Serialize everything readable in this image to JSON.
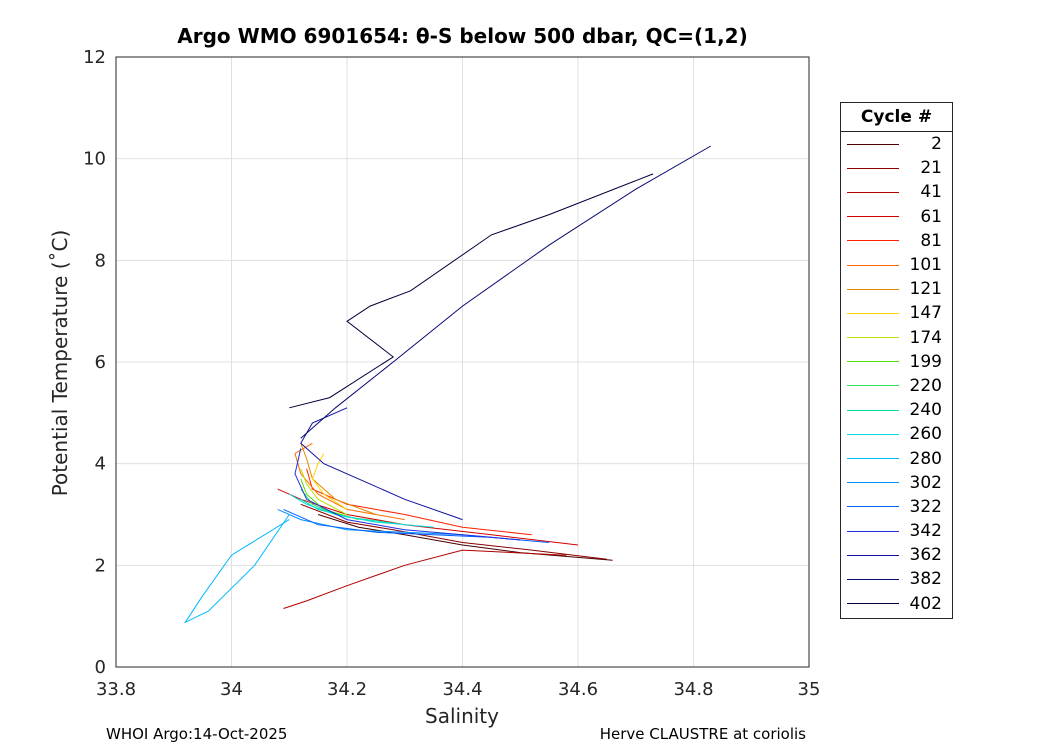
{
  "chart_data": {
    "type": "line",
    "title": "Argo WMO 6901654: θ-S below 500 dbar,  QC=(1,2)",
    "xlabel": "Salinity",
    "ylabel": "Potential Temperature (˚C)",
    "xlim": [
      33.8,
      35
    ],
    "ylim": [
      0,
      12
    ],
    "xticks": [
      "33.8",
      "34",
      "34.2",
      "34.4",
      "34.6",
      "34.8",
      "35"
    ],
    "yticks": [
      "0",
      "2",
      "4",
      "6",
      "8",
      "10",
      "12"
    ],
    "grid": true,
    "legend_title": "Cycle #",
    "legend_position": "right",
    "series": [
      {
        "name": "2",
        "color": "#4a0000",
        "x": [
          34.66,
          34.5,
          34.4,
          34.3,
          34.22,
          34.15
        ],
        "y": [
          2.1,
          2.25,
          2.4,
          2.6,
          2.75,
          3.0
        ]
      },
      {
        "name": "21",
        "color": "#8b0000",
        "x": [
          34.65,
          34.52,
          34.4,
          34.28,
          34.2,
          34.12
        ],
        "y": [
          2.12,
          2.3,
          2.45,
          2.7,
          2.85,
          3.2
        ]
      },
      {
        "name": "41",
        "color": "#b30000",
        "x": [
          34.58,
          34.4,
          34.3,
          34.2,
          34.13,
          34.09
        ],
        "y": [
          2.2,
          2.3,
          2.0,
          1.6,
          1.3,
          1.15
        ]
      },
      {
        "name": "61",
        "color": "#d40000",
        "x": [
          34.6,
          34.45,
          34.3,
          34.2,
          34.12,
          34.08
        ],
        "y": [
          2.4,
          2.6,
          2.8,
          3.0,
          3.3,
          3.5
        ]
      },
      {
        "name": "81",
        "color": "#ff2000",
        "x": [
          34.52,
          34.4,
          34.3,
          34.2,
          34.14,
          34.13
        ],
        "y": [
          2.6,
          2.75,
          3.0,
          3.2,
          3.5,
          3.9
        ]
      },
      {
        "name": "101",
        "color": "#ff6a00",
        "x": [
          34.3,
          34.2,
          34.15,
          34.12,
          34.11,
          34.14
        ],
        "y": [
          2.9,
          3.1,
          3.4,
          3.8,
          4.2,
          4.4
        ]
      },
      {
        "name": "121",
        "color": "#e08a00",
        "x": [
          34.25,
          34.18,
          34.14,
          34.13,
          34.12
        ],
        "y": [
          3.0,
          3.3,
          3.7,
          4.1,
          4.4
        ]
      },
      {
        "name": "147",
        "color": "#ffd400",
        "x": [
          34.2,
          34.16,
          34.14,
          34.15,
          34.16
        ],
        "y": [
          3.1,
          3.4,
          3.7,
          4.0,
          4.2
        ]
      },
      {
        "name": "174",
        "color": "#b8e000",
        "x": [
          34.2,
          34.15,
          34.13,
          34.12
        ],
        "y": [
          3.0,
          3.3,
          3.6,
          3.9
        ]
      },
      {
        "name": "199",
        "color": "#50e000",
        "x": [
          34.22,
          34.16,
          34.13,
          34.12
        ],
        "y": [
          2.9,
          3.1,
          3.4,
          3.7
        ]
      },
      {
        "name": "220",
        "color": "#30e060",
        "x": [
          34.25,
          34.18,
          34.14,
          34.12
        ],
        "y": [
          2.85,
          3.0,
          3.2,
          3.5
        ]
      },
      {
        "name": "240",
        "color": "#00e0a0",
        "x": [
          34.3,
          34.2,
          34.15,
          34.12
        ],
        "y": [
          2.8,
          2.95,
          3.1,
          3.3
        ]
      },
      {
        "name": "260",
        "color": "#00e0e0",
        "x": [
          34.35,
          34.25,
          34.18,
          34.13,
          34.1
        ],
        "y": [
          2.75,
          2.85,
          3.0,
          3.2,
          3.4
        ]
      },
      {
        "name": "280",
        "color": "#00b8ff",
        "x": [
          34.1,
          34.0,
          33.95,
          33.92,
          33.96,
          34.04,
          34.1
        ],
        "y": [
          2.9,
          2.2,
          1.4,
          0.88,
          1.1,
          2.0,
          3.0
        ]
      },
      {
        "name": "302",
        "color": "#0090ff",
        "x": [
          34.5,
          34.4,
          34.3,
          34.2,
          34.12,
          34.08
        ],
        "y": [
          2.5,
          2.6,
          2.65,
          2.7,
          2.9,
          3.1
        ]
      },
      {
        "name": "322",
        "color": "#0060ff",
        "x": [
          34.55,
          34.45,
          34.35,
          34.25,
          34.15,
          34.09
        ],
        "y": [
          2.45,
          2.55,
          2.6,
          2.65,
          2.8,
          3.1
        ]
      },
      {
        "name": "342",
        "color": "#2030e0",
        "x": [
          34.5,
          34.4,
          34.3,
          34.2,
          34.13,
          34.11,
          34.12
        ],
        "y": [
          2.5,
          2.6,
          2.7,
          2.9,
          3.3,
          3.8,
          4.3
        ]
      },
      {
        "name": "362",
        "color": "#1010a0",
        "x": [
          34.4,
          34.3,
          34.22,
          34.16,
          34.12,
          34.14,
          34.2
        ],
        "y": [
          2.9,
          3.3,
          3.7,
          4.0,
          4.4,
          4.8,
          5.1
        ]
      },
      {
        "name": "382",
        "color": "#080870",
        "x": [
          34.83,
          34.7,
          34.55,
          34.4,
          34.28,
          34.18,
          34.12
        ],
        "y": [
          10.25,
          9.4,
          8.3,
          7.1,
          6.0,
          5.1,
          4.5
        ]
      },
      {
        "name": "402",
        "color": "#00003a",
        "x": [
          34.73,
          34.55,
          34.45,
          34.31,
          34.24,
          34.2,
          34.28,
          34.17,
          34.1
        ],
        "y": [
          9.7,
          8.9,
          8.5,
          7.4,
          7.1,
          6.8,
          6.1,
          5.3,
          5.1
        ]
      }
    ]
  },
  "footer": {
    "left": "WHOI Argo:14-Oct-2025",
    "right": "Herve CLAUSTRE at coriolis"
  }
}
